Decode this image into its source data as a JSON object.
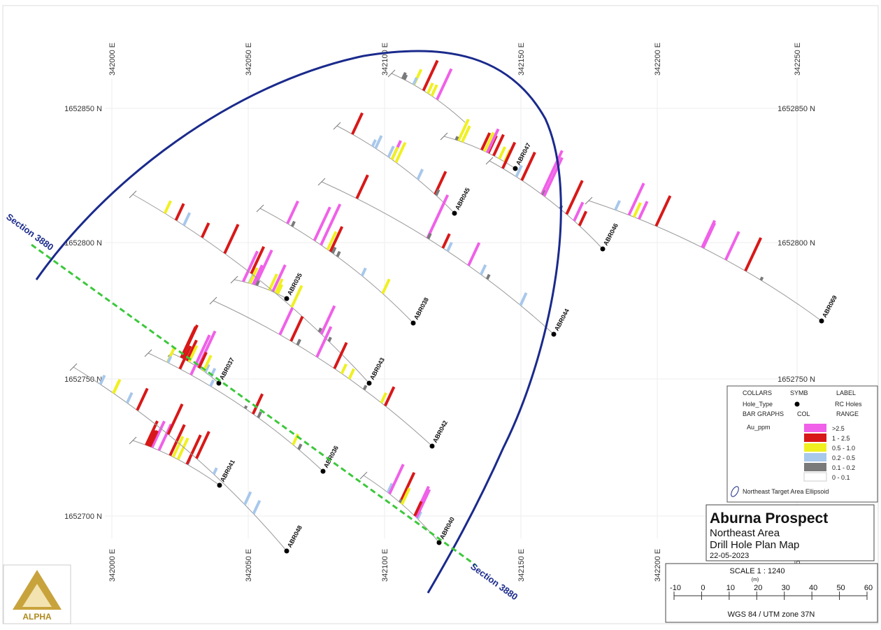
{
  "map": {
    "eastings": [
      "342000 E",
      "342050 E",
      "342100 E",
      "342150 E",
      "342200 E",
      "342250 E"
    ],
    "northings": [
      "1652850 N",
      "1652800 N",
      "1652750 N",
      "1652700 N"
    ],
    "holes": [
      "ABR047",
      "ABR045",
      "ABR046",
      "ABR069",
      "ABR038",
      "ABR044",
      "ABR035",
      "ABR043",
      "ABR037",
      "ABR042",
      "ABR036",
      "ABR041",
      "ABR040",
      "ABR048"
    ],
    "section_label": "Section 3880"
  },
  "legend": {
    "collars_header": [
      "COLLARS",
      "SYMB",
      "LABEL"
    ],
    "hole_type": "Hole_Type",
    "hole_label": "RC Holes",
    "bar_header": [
      "BAR GRAPHS",
      "COL",
      "RANGE"
    ],
    "field": "Au_ppm",
    "ranges": [
      {
        "label": ">2.5",
        "color": "#f060e8"
      },
      {
        "label": "1 - 2.5",
        "color": "#d81818"
      },
      {
        "label": "0.5 - 1.0",
        "color": "#f0f020"
      },
      {
        "label": "0.2 - 0.5",
        "color": "#a8c8ec"
      },
      {
        "label": "0.1 - 0.2",
        "color": "#7a7a7a"
      },
      {
        "label": "0 - 0.1",
        "color": "#ffffff"
      }
    ],
    "ellipse_label": "Northeast Target Area Ellipsoid"
  },
  "title_block": {
    "title": "Aburna Prospect",
    "area": "Northeast Area",
    "map_name": "Drill Hole Plan Map",
    "date": "22-05-2023"
  },
  "scale": {
    "title": "SCALE  1 : 1240",
    "unit": "(m)",
    "ticks": [
      "-10",
      "0",
      "10",
      "20",
      "30",
      "40",
      "50",
      "60"
    ],
    "projection": "WGS 84 / UTM zone 37N"
  },
  "logo": {
    "text": "ALPHA"
  }
}
